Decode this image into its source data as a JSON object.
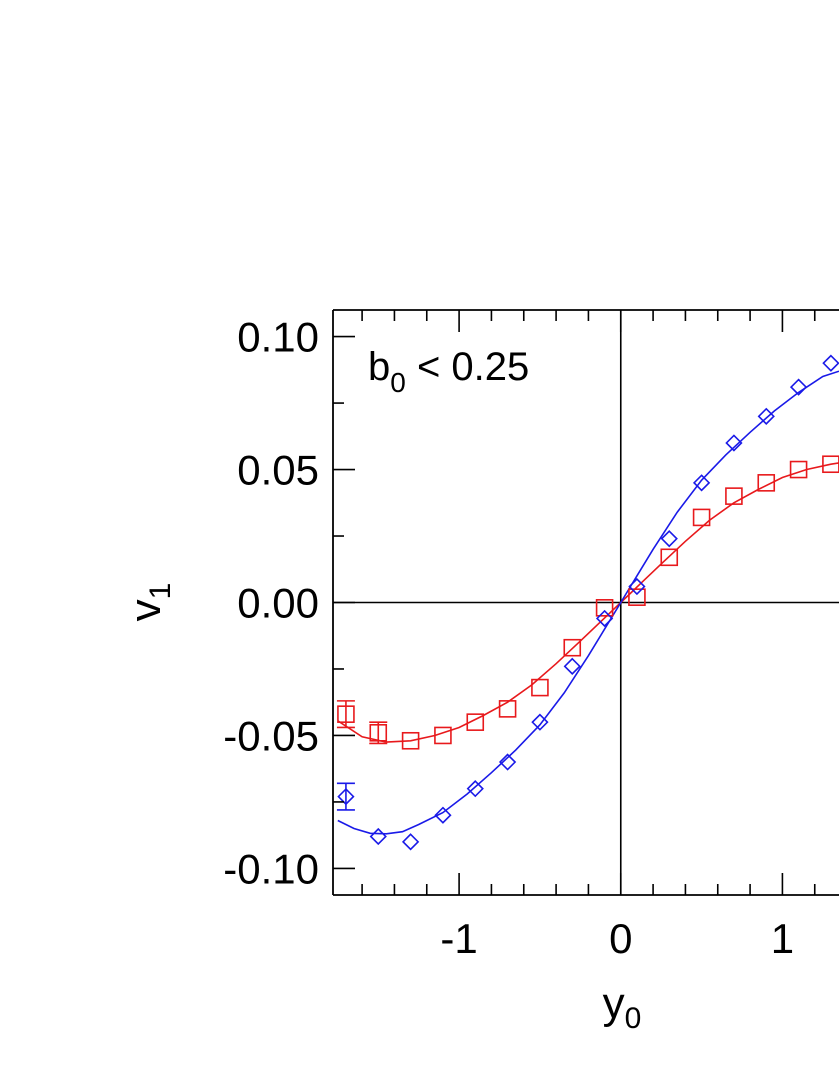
{
  "chart_data": {
    "type": "scatter",
    "annotation": {
      "main": "b",
      "sub": "0",
      "rest": " < 0.25"
    },
    "xlabel": {
      "main": "y",
      "sub": "0"
    },
    "ylabel": {
      "main": "v",
      "sub": "1"
    },
    "xlim": [
      -1.78,
      1.35
    ],
    "ylim": [
      -0.11,
      0.11
    ],
    "x_ticks": [
      -1,
      0,
      1
    ],
    "x_tick_labels": [
      "-1",
      "0",
      "1"
    ],
    "y_ticks": [
      -0.1,
      -0.05,
      0.0,
      0.05,
      0.1
    ],
    "y_tick_labels": [
      "-0.10",
      "-0.05",
      "0.00",
      "0.05",
      "0.10"
    ],
    "reference_lines": {
      "x": 0,
      "y": 0
    },
    "series": [
      {
        "marker": "square",
        "color": "#e8191c",
        "x": [
          -1.7,
          -1.5,
          -1.3,
          -1.1,
          -0.9,
          -0.7,
          -0.5,
          -0.3,
          -0.1,
          0.1,
          0.3,
          0.5,
          0.7,
          0.9,
          1.1,
          1.3
        ],
        "y": [
          -0.042,
          -0.049,
          -0.052,
          -0.05,
          -0.045,
          -0.04,
          -0.032,
          -0.017,
          -0.002,
          0.002,
          0.017,
          0.032,
          0.04,
          0.045,
          0.05,
          0.052
        ],
        "yerr": [
          0.005,
          0.004,
          0,
          0,
          0,
          0,
          0,
          0,
          0,
          0,
          0,
          0,
          0,
          0,
          0,
          0
        ],
        "fit_x": [
          -1.75,
          -1.6,
          -1.45,
          -1.3,
          -1.15,
          -1.0,
          -0.85,
          -0.7,
          -0.55,
          -0.4,
          -0.25,
          -0.1,
          0.0,
          0.1,
          0.25,
          0.4,
          0.55,
          0.7,
          0.85,
          1.0,
          1.15,
          1.3,
          1.35
        ],
        "fit_y": [
          -0.0445,
          -0.0505,
          -0.0525,
          -0.052,
          -0.05,
          -0.047,
          -0.0425,
          -0.0375,
          -0.031,
          -0.023,
          -0.0145,
          -0.0058,
          0.0,
          0.0058,
          0.0145,
          0.023,
          0.031,
          0.0375,
          0.0425,
          0.047,
          0.05,
          0.052,
          0.0525
        ]
      },
      {
        "marker": "diamond",
        "color": "#1a1ae8",
        "x": [
          -1.7,
          -1.5,
          -1.3,
          -1.1,
          -0.9,
          -0.7,
          -0.5,
          -0.3,
          -0.1,
          0.1,
          0.3,
          0.5,
          0.7,
          0.9,
          1.1,
          1.3
        ],
        "y": [
          -0.073,
          -0.088,
          -0.09,
          -0.08,
          -0.07,
          -0.06,
          -0.045,
          -0.024,
          -0.006,
          0.006,
          0.024,
          0.045,
          0.06,
          0.07,
          0.081,
          0.09
        ],
        "yerr": [
          0.005,
          0,
          0,
          0,
          0,
          0,
          0,
          0,
          0,
          0,
          0,
          0,
          0,
          0,
          0,
          0
        ],
        "fit_x": [
          -1.75,
          -1.65,
          -1.55,
          -1.45,
          -1.35,
          -1.25,
          -1.1,
          -0.95,
          -0.8,
          -0.65,
          -0.5,
          -0.35,
          -0.2,
          -0.1,
          0.0,
          0.1,
          0.2,
          0.35,
          0.5,
          0.65,
          0.8,
          0.95,
          1.1,
          1.25,
          1.35
        ],
        "fit_y": [
          -0.082,
          -0.085,
          -0.0868,
          -0.087,
          -0.0862,
          -0.0835,
          -0.079,
          -0.072,
          -0.064,
          -0.0555,
          -0.046,
          -0.034,
          -0.02,
          -0.01,
          0.0,
          0.01,
          0.02,
          0.034,
          0.046,
          0.0555,
          0.064,
          0.072,
          0.079,
          0.085,
          0.087
        ]
      }
    ]
  }
}
